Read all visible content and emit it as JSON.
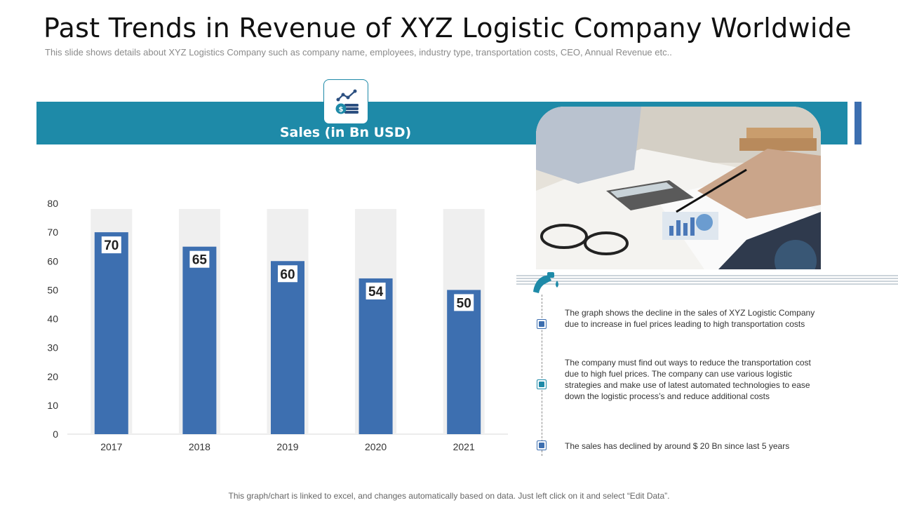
{
  "header": {
    "title": "Past Trends in Revenue of XYZ Logistic Company Worldwide",
    "subtitle": "This slide shows details about XYZ  Logistics Company such as company name, employees, industry type, transportation costs, CEO, Annual Revenue etc.."
  },
  "banner": {
    "label": "Sales (in Bn USD)",
    "icon": "sales-chart-coins-icon"
  },
  "chart_data": {
    "type": "bar",
    "title": "Sales (in Bn USD)",
    "categories": [
      "2017",
      "2018",
      "2019",
      "2020",
      "2021"
    ],
    "values": [
      70,
      65,
      60,
      54,
      50
    ],
    "ylim": [
      0,
      80
    ],
    "yticks": [
      0,
      10,
      20,
      30,
      40,
      50,
      60,
      70,
      80
    ],
    "grid": false,
    "data_labels": true,
    "bar_color": "#3d6fb0",
    "background_bar_color": "#efefef"
  },
  "notes": {
    "icon": "fuel-pump-icon",
    "points": [
      "The graph  shows the decline in the sales of XYZ  Logistic Company due to increase in fuel prices leading to high transportation costs",
      "The company must find out ways to reduce the transportation cost due to high fuel prices. The company can use various logistic strategies and make use of latest automated technologies to ease down the logistic process’s and reduce additional costs",
      "The sales has declined by around  $ 20 Bn since last 5 years"
    ]
  },
  "footer": {
    "note": "This graph/chart is linked to excel, and changes automatically based on data. Just left click on it and select “Edit Data”."
  },
  "colors": {
    "accent_teal": "#1e8aa8",
    "accent_blue": "#3d6fb0"
  }
}
